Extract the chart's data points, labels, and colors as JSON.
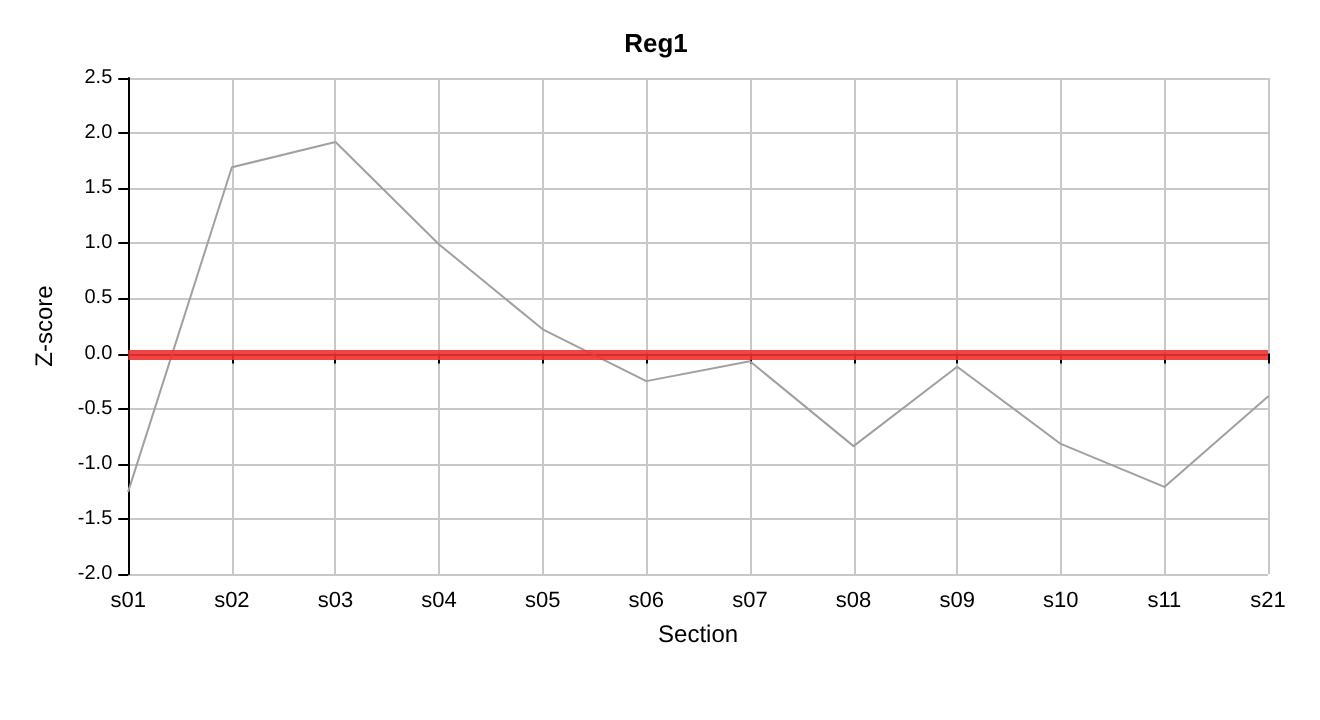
{
  "chart_data": {
    "type": "line",
    "title": "Reg1",
    "xlabel": "Section",
    "ylabel": "Z-score",
    "categories": [
      "s01",
      "s02",
      "s03",
      "s04",
      "s05",
      "s06",
      "s07",
      "s08",
      "s09",
      "s10",
      "s11",
      "s21"
    ],
    "series": [
      {
        "color": "#a0a0a0",
        "values": [
          -1.25,
          1.69,
          1.92,
          0.99,
          0.22,
          -0.25,
          -0.07,
          -0.84,
          -0.12,
          -0.82,
          -1.21,
          -0.39
        ]
      }
    ],
    "ylim": [
      -2.0,
      2.5
    ],
    "yticks": [
      {
        "value": -2,
        "label": "-2.0"
      },
      {
        "value": -1.5,
        "label": "-1.5"
      },
      {
        "value": -1,
        "label": "-1.0"
      },
      {
        "value": -0.5,
        "label": "-0.5"
      },
      {
        "value": 0,
        "label": "0.0"
      },
      {
        "value": 0.5,
        "label": "0.5"
      },
      {
        "value": 1,
        "label": "1.0"
      },
      {
        "value": 1.5,
        "label": "1.5"
      },
      {
        "value": 2,
        "label": "2.0"
      },
      {
        "value": 2.5,
        "label": "2.5"
      }
    ],
    "ref_lines": [
      {
        "axis": "y",
        "value": 0,
        "color": "#f03030"
      }
    ],
    "grid": true,
    "marker": "none",
    "line_style": "solid"
  }
}
